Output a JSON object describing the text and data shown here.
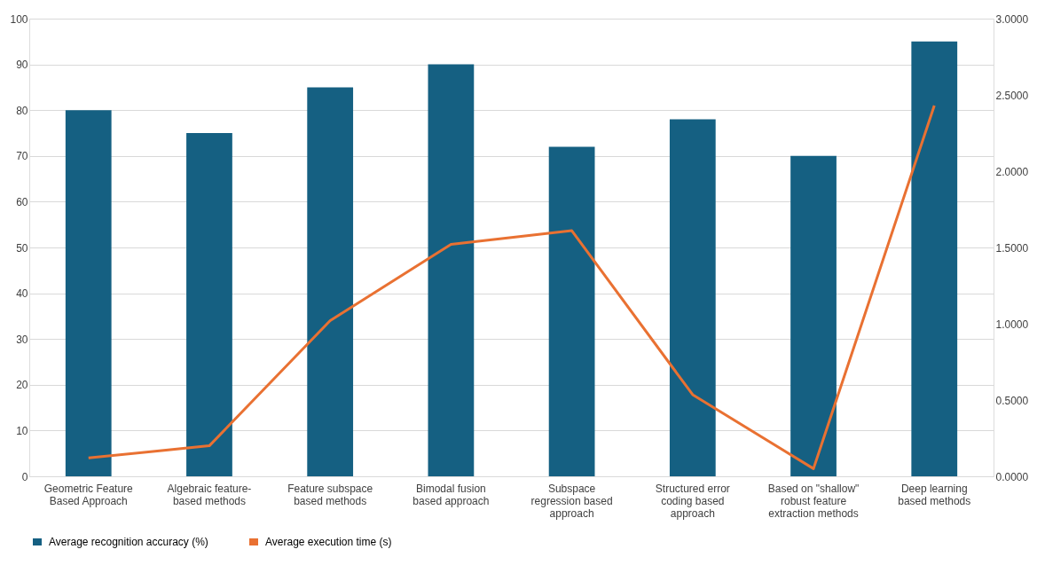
{
  "chart_data": {
    "type": "bar",
    "categories": [
      "Geometric Feature Based Approach",
      "Algebraic feature-based methods",
      "Feature subspace based methods",
      "Bimodal fusion based approach",
      "Subspace regression based approach",
      "Structured error coding based approach",
      "Based on \"shallow\" robust feature extraction methods",
      "Deep learning based methods"
    ],
    "series": [
      {
        "name": "Average recognition accuracy (%)",
        "color": "#156082",
        "values": [
          80,
          75,
          85,
          90,
          72,
          78,
          70,
          95
        ]
      },
      {
        "name": "Average execution time (s)",
        "color": "#e97132",
        "type": "line",
        "axis": "y2",
        "values": [
          0.12,
          0.2,
          1.02,
          1.52,
          1.61,
          0.535,
          0.05,
          2.43
        ]
      }
    ],
    "ylim": [
      0,
      100
    ],
    "yticks": [
      0,
      10,
      20,
      30,
      40,
      50,
      60,
      70,
      80,
      90,
      100
    ],
    "y2lim": [
      0,
      3
    ],
    "y2ticks": [
      {
        "value": 0,
        "label": "0.0000"
      },
      {
        "value": 0.5,
        "label": "0.5000"
      },
      {
        "value": 1,
        "label": "1.0000"
      },
      {
        "value": 1.5,
        "label": "1.5000"
      },
      {
        "value": 2,
        "label": "2.0000"
      },
      {
        "value": 2.5,
        "label": "2.5000"
      },
      {
        "value": 3,
        "label": "3.0000"
      }
    ],
    "grid": "y",
    "legend": "bottom",
    "marker": "none",
    "line_style": "solid"
  }
}
